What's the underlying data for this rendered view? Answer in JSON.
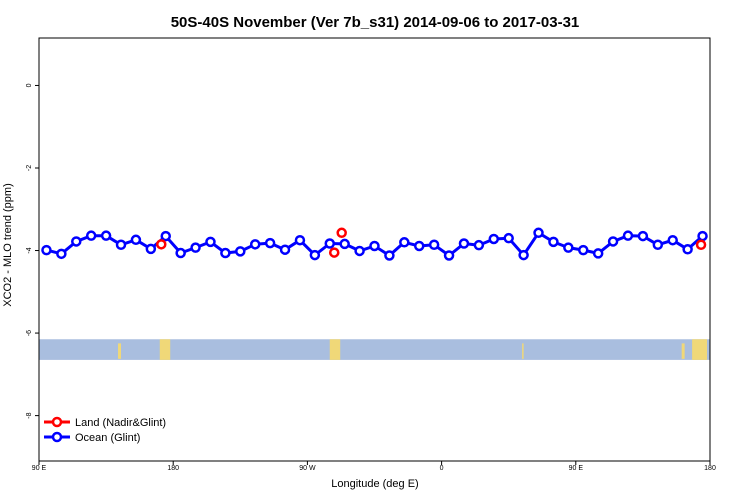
{
  "chart_data": {
    "type": "line",
    "title": "50S-40S November (Ver 7b_s31)   2014-09-06 to 2017-03-31",
    "xlabel": "Longitude (deg E)",
    "ylabel": "XCO2 - MLO trend (ppm)",
    "x_ticks": [
      {
        "value": 90,
        "label": "90 E"
      },
      {
        "value": 180,
        "label": "180"
      },
      {
        "value": 270,
        "label": "90 W"
      },
      {
        "value": 360,
        "label": "0"
      },
      {
        "value": 450,
        "label": "90 E"
      },
      {
        "value": 540,
        "label": "180"
      }
    ],
    "y_ticks": [
      {
        "value": 0,
        "label": "0"
      },
      {
        "value": -2,
        "label": "-2"
      },
      {
        "value": -4,
        "label": "-4"
      },
      {
        "value": -6,
        "label": "-6"
      },
      {
        "value": -8,
        "label": "-8"
      }
    ],
    "xlim": [
      90,
      540
    ],
    "ylim": [
      -9.1,
      1.15
    ],
    "grid": false,
    "legend_position": "bottom-left",
    "series": [
      {
        "name": "Land (Nadir&Glint)",
        "color": "#ff0000",
        "line": false,
        "points": [
          [
            172,
            -3.85
          ],
          [
            288,
            -4.05
          ],
          [
            293,
            -3.57
          ],
          [
            534,
            -3.86
          ]
        ]
      },
      {
        "name": "Ocean (Glint)",
        "color": "#0000ff",
        "line": true,
        "points": [
          [
            95,
            -3.99
          ],
          [
            105,
            -4.08
          ],
          [
            115,
            -3.78
          ],
          [
            125,
            -3.64
          ],
          [
            135,
            -3.64
          ],
          [
            145,
            -3.86
          ],
          [
            155,
            -3.74
          ],
          [
            165,
            -3.96
          ],
          [
            175,
            -3.65
          ],
          [
            185,
            -4.06
          ],
          [
            195,
            -3.93
          ],
          [
            205,
            -3.79
          ],
          [
            215,
            -4.06
          ],
          [
            225,
            -4.02
          ],
          [
            235,
            -3.85
          ],
          [
            245,
            -3.82
          ],
          [
            255,
            -3.98
          ],
          [
            265,
            -3.75
          ],
          [
            275,
            -4.11
          ],
          [
            285,
            -3.83
          ],
          [
            295,
            -3.84
          ],
          [
            305,
            -4.01
          ],
          [
            315,
            -3.89
          ],
          [
            325,
            -4.12
          ],
          [
            335,
            -3.8
          ],
          [
            345,
            -3.89
          ],
          [
            355,
            -3.86
          ],
          [
            365,
            -4.12
          ],
          [
            375,
            -3.83
          ],
          [
            385,
            -3.87
          ],
          [
            395,
            -3.72
          ],
          [
            405,
            -3.7
          ],
          [
            415,
            -4.11
          ],
          [
            425,
            -3.57
          ],
          [
            435,
            -3.79
          ],
          [
            445,
            -3.93
          ],
          [
            455,
            -3.99
          ],
          [
            465,
            -4.07
          ],
          [
            475,
            -3.78
          ],
          [
            485,
            -3.64
          ],
          [
            495,
            -3.65
          ],
          [
            505,
            -3.86
          ],
          [
            515,
            -3.75
          ],
          [
            525,
            -3.97
          ],
          [
            535,
            -3.65
          ]
        ]
      }
    ],
    "map_band": {
      "y_range": [
        -6.65,
        -6.15
      ],
      "ocean_color": "#a9bedf",
      "land_color": "#f0d878",
      "land_x_ranges": [
        [
          143,
          145
        ],
        [
          171,
          178
        ],
        [
          285,
          292
        ],
        [
          414,
          415
        ],
        [
          521,
          523
        ],
        [
          528,
          538
        ]
      ]
    }
  }
}
